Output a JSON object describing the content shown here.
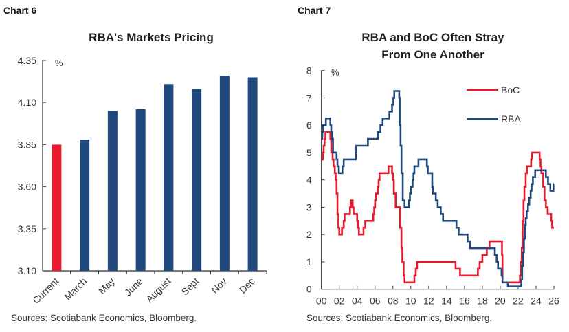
{
  "charts_header": {
    "left_label": "Chart 6",
    "right_label": "Chart 7"
  },
  "chart_data": [
    {
      "type": "bar",
      "title": "RBA's Markets Pricing",
      "ylabel": "%",
      "ylim": [
        3.1,
        4.35
      ],
      "yticks": [
        "3.10",
        "3.35",
        "3.60",
        "3.85",
        "4.10",
        "4.35"
      ],
      "categories": [
        "Current",
        "March",
        "May",
        "June",
        "August",
        "Sept",
        "Nov",
        "Dec"
      ],
      "values": [
        3.85,
        3.88,
        4.05,
        4.06,
        4.21,
        4.18,
        4.26,
        4.25
      ],
      "colors": [
        "#e8192c",
        "#1f497d",
        "#1f497d",
        "#1f497d",
        "#1f497d",
        "#1f497d",
        "#1f497d",
        "#1f497d"
      ],
      "grid": false,
      "source": "Sources: Scotiabank Economics, Bloomberg."
    },
    {
      "type": "line",
      "title_lines": [
        "RBA and BoC Often Stray",
        "From One Another"
      ],
      "ylabel": "%",
      "ylim": [
        0,
        8
      ],
      "xlim": [
        2000,
        2026
      ],
      "yticks": [
        "0",
        "1",
        "2",
        "3",
        "4",
        "5",
        "6",
        "7",
        "8"
      ],
      "xticks": [
        "00",
        "02",
        "04",
        "06",
        "08",
        "10",
        "12",
        "14",
        "16",
        "18",
        "20",
        "22",
        "24",
        "26"
      ],
      "legend_position": "top-right",
      "grid": false,
      "series": [
        {
          "name": "BoC",
          "color": "#e8192c",
          "step": true,
          "points": [
            [
              2000.0,
              4.75
            ],
            [
              2000.15,
              5.0
            ],
            [
              2000.25,
              5.25
            ],
            [
              2000.35,
              5.5
            ],
            [
              2000.45,
              5.75
            ],
            [
              2001.0,
              5.5
            ],
            [
              2001.1,
              5.0
            ],
            [
              2001.25,
              4.75
            ],
            [
              2001.35,
              4.5
            ],
            [
              2001.5,
              4.25
            ],
            [
              2001.6,
              4.0
            ],
            [
              2001.7,
              3.5
            ],
            [
              2001.8,
              2.75
            ],
            [
              2001.9,
              2.25
            ],
            [
              2002.0,
              2.0
            ],
            [
              2002.3,
              2.25
            ],
            [
              2002.5,
              2.5
            ],
            [
              2002.6,
              2.75
            ],
            [
              2003.2,
              3.0
            ],
            [
              2003.3,
              3.25
            ],
            [
              2003.5,
              3.0
            ],
            [
              2003.6,
              2.75
            ],
            [
              2004.0,
              2.5
            ],
            [
              2004.1,
              2.25
            ],
            [
              2004.2,
              2.0
            ],
            [
              2004.7,
              2.25
            ],
            [
              2004.9,
              2.5
            ],
            [
              2005.8,
              2.75
            ],
            [
              2005.9,
              3.0
            ],
            [
              2006.0,
              3.25
            ],
            [
              2006.1,
              3.5
            ],
            [
              2006.3,
              3.75
            ],
            [
              2006.4,
              4.0
            ],
            [
              2006.5,
              4.25
            ],
            [
              2007.5,
              4.5
            ],
            [
              2007.9,
              4.25
            ],
            [
              2008.0,
              4.0
            ],
            [
              2008.1,
              3.5
            ],
            [
              2008.3,
              3.0
            ],
            [
              2008.8,
              2.25
            ],
            [
              2008.95,
              1.5
            ],
            [
              2009.05,
              1.0
            ],
            [
              2009.2,
              0.5
            ],
            [
              2009.3,
              0.25
            ],
            [
              2010.4,
              0.5
            ],
            [
              2010.55,
              0.75
            ],
            [
              2010.7,
              1.0
            ],
            [
              2015.0,
              0.75
            ],
            [
              2015.5,
              0.5
            ],
            [
              2017.5,
              0.75
            ],
            [
              2017.7,
              1.0
            ],
            [
              2018.0,
              1.25
            ],
            [
              2018.5,
              1.5
            ],
            [
              2018.8,
              1.75
            ],
            [
              2020.2,
              1.25
            ],
            [
              2020.25,
              0.25
            ],
            [
              2022.2,
              0.5
            ],
            [
              2022.3,
              1.0
            ],
            [
              2022.4,
              1.5
            ],
            [
              2022.5,
              2.5
            ],
            [
              2022.6,
              3.25
            ],
            [
              2022.7,
              3.75
            ],
            [
              2022.85,
              4.25
            ],
            [
              2023.0,
              4.5
            ],
            [
              2023.45,
              4.75
            ],
            [
              2023.55,
              5.0
            ],
            [
              2024.4,
              4.75
            ],
            [
              2024.5,
              4.5
            ],
            [
              2024.6,
              4.25
            ],
            [
              2024.8,
              3.75
            ],
            [
              2024.95,
              3.25
            ],
            [
              2025.1,
              3.0
            ],
            [
              2025.3,
              2.75
            ],
            [
              2025.7,
              2.5
            ],
            [
              2025.8,
              2.25
            ],
            [
              2026.0,
              2.25
            ]
          ]
        },
        {
          "name": "RBA",
          "color": "#1f497d",
          "step": true,
          "points": [
            [
              2000.0,
              5.5
            ],
            [
              2000.1,
              5.75
            ],
            [
              2000.2,
              6.0
            ],
            [
              2000.5,
              6.25
            ],
            [
              2001.0,
              6.0
            ],
            [
              2001.1,
              5.75
            ],
            [
              2001.2,
              5.5
            ],
            [
              2001.3,
              5.0
            ],
            [
              2001.7,
              4.75
            ],
            [
              2001.8,
              4.5
            ],
            [
              2001.95,
              4.25
            ],
            [
              2002.35,
              4.5
            ],
            [
              2002.5,
              4.75
            ],
            [
              2003.85,
              5.0
            ],
            [
              2003.9,
              5.25
            ],
            [
              2005.2,
              5.5
            ],
            [
              2006.3,
              5.75
            ],
            [
              2006.6,
              6.0
            ],
            [
              2006.85,
              6.25
            ],
            [
              2007.6,
              6.5
            ],
            [
              2007.9,
              6.75
            ],
            [
              2008.05,
              7.0
            ],
            [
              2008.15,
              7.25
            ],
            [
              2008.7,
              7.0
            ],
            [
              2008.75,
              6.0
            ],
            [
              2008.85,
              5.25
            ],
            [
              2008.95,
              4.25
            ],
            [
              2009.1,
              3.25
            ],
            [
              2009.3,
              3.0
            ],
            [
              2009.8,
              3.25
            ],
            [
              2009.9,
              3.5
            ],
            [
              2010.0,
              3.75
            ],
            [
              2010.2,
              4.0
            ],
            [
              2010.3,
              4.25
            ],
            [
              2010.4,
              4.5
            ],
            [
              2010.85,
              4.75
            ],
            [
              2011.8,
              4.5
            ],
            [
              2011.9,
              4.25
            ],
            [
              2012.4,
              3.75
            ],
            [
              2012.5,
              3.5
            ],
            [
              2012.8,
              3.25
            ],
            [
              2013.0,
              3.0
            ],
            [
              2013.35,
              2.75
            ],
            [
              2013.6,
              2.5
            ],
            [
              2015.1,
              2.25
            ],
            [
              2015.35,
              2.0
            ],
            [
              2016.35,
              1.75
            ],
            [
              2016.6,
              1.5
            ],
            [
              2019.4,
              1.25
            ],
            [
              2019.6,
              1.0
            ],
            [
              2019.75,
              0.75
            ],
            [
              2020.15,
              0.5
            ],
            [
              2020.25,
              0.25
            ],
            [
              2020.85,
              0.1
            ],
            [
              2022.35,
              0.35
            ],
            [
              2022.45,
              0.85
            ],
            [
              2022.55,
              1.35
            ],
            [
              2022.65,
              1.85
            ],
            [
              2022.75,
              2.35
            ],
            [
              2022.85,
              2.6
            ],
            [
              2022.95,
              2.85
            ],
            [
              2023.1,
              3.1
            ],
            [
              2023.25,
              3.35
            ],
            [
              2023.4,
              3.6
            ],
            [
              2023.5,
              3.85
            ],
            [
              2023.65,
              4.1
            ],
            [
              2023.9,
              4.35
            ],
            [
              2025.1,
              4.1
            ],
            [
              2025.35,
              3.85
            ],
            [
              2025.6,
              3.6
            ],
            [
              2025.95,
              3.85
            ],
            [
              2026.0,
              3.85
            ]
          ]
        }
      ],
      "source": "Sources: Scotiabank Economics, Bloomberg."
    }
  ]
}
